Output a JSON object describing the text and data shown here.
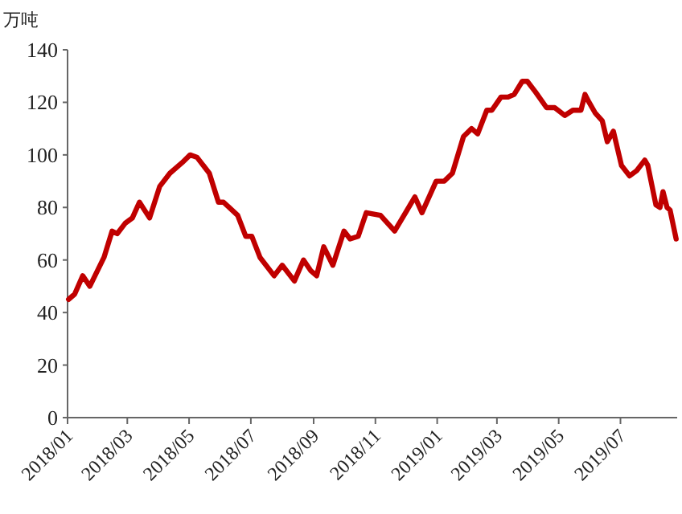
{
  "chart_data": {
    "type": "line",
    "ylabel": "万吨",
    "x": [
      "2018-01-02",
      "2018-01-08",
      "2018-01-16",
      "2018-01-23",
      "2018-02-06",
      "2018-02-14",
      "2018-02-19",
      "2018-02-27",
      "2018-03-06",
      "2018-03-13",
      "2018-03-23",
      "2018-04-02",
      "2018-04-12",
      "2018-04-24",
      "2018-05-02",
      "2018-05-09",
      "2018-05-21",
      "2018-05-30",
      "2018-06-04",
      "2018-06-18",
      "2018-06-26",
      "2018-07-02",
      "2018-07-10",
      "2018-07-24",
      "2018-08-01",
      "2018-08-13",
      "2018-08-22",
      "2018-08-29",
      "2018-09-04",
      "2018-09-11",
      "2018-09-20",
      "2018-10-01",
      "2018-10-07",
      "2018-10-15",
      "2018-10-23",
      "2018-11-06",
      "2018-11-20",
      "2018-12-10",
      "2018-12-17",
      "2018-12-31",
      "2019-01-08",
      "2019-01-16",
      "2019-01-27",
      "2019-02-04",
      "2019-02-10",
      "2019-02-19",
      "2019-02-24",
      "2019-03-05",
      "2019-03-12",
      "2019-03-18",
      "2019-03-26",
      "2019-03-31",
      "2019-04-08",
      "2019-04-19",
      "2019-04-27",
      "2019-05-07",
      "2019-05-15",
      "2019-05-23",
      "2019-05-27",
      "2019-05-31",
      "2019-06-06",
      "2019-06-13",
      "2019-06-18",
      "2019-06-24",
      "2019-07-02",
      "2019-07-10",
      "2019-07-17",
      "2019-07-25",
      "2019-07-28",
      "2019-08-05",
      "2019-08-09",
      "2019-08-12",
      "2019-08-16",
      "2019-08-19",
      "2019-08-25"
    ],
    "series": [
      {
        "color": "#c00000",
        "values": [
          45,
          47,
          54,
          50,
          61,
          71,
          70,
          74,
          76,
          82,
          76,
          88,
          93,
          97,
          100,
          99,
          93,
          82,
          82,
          77,
          69,
          69,
          61,
          54,
          58,
          52,
          60,
          56,
          54,
          65,
          58,
          71,
          68,
          69,
          78,
          77,
          71,
          84,
          78,
          90,
          90,
          93,
          107,
          110,
          108,
          117,
          117,
          122,
          122,
          123,
          128,
          128,
          124,
          118,
          118,
          115,
          117,
          117,
          123,
          120,
          116,
          113,
          105,
          109,
          96,
          92,
          94,
          98,
          96,
          81,
          80,
          86,
          80,
          79,
          68
        ]
      }
    ],
    "xlim": [
      "2018-01-01",
      "2019-08-26"
    ],
    "xticks": [
      {
        "value": "2018-01-01",
        "label": "2018/01"
      },
      {
        "value": "2018-03-01",
        "label": "2018/03"
      },
      {
        "value": "2018-05-01",
        "label": "2018/05"
      },
      {
        "value": "2018-07-01",
        "label": "2018/07"
      },
      {
        "value": "2018-09-01",
        "label": "2018/09"
      },
      {
        "value": "2018-11-01",
        "label": "2018/11"
      },
      {
        "value": "2019-01-01",
        "label": "2019/01"
      },
      {
        "value": "2019-03-01",
        "label": "2019/03"
      },
      {
        "value": "2019-05-01",
        "label": "2019/05"
      },
      {
        "value": "2019-07-01",
        "label": "2019/07"
      }
    ],
    "ylim": [
      0,
      140
    ],
    "yticks": [
      0,
      20,
      40,
      60,
      80,
      100,
      120,
      140
    ],
    "grid": false,
    "marker": "none",
    "line_style": "solid"
  }
}
